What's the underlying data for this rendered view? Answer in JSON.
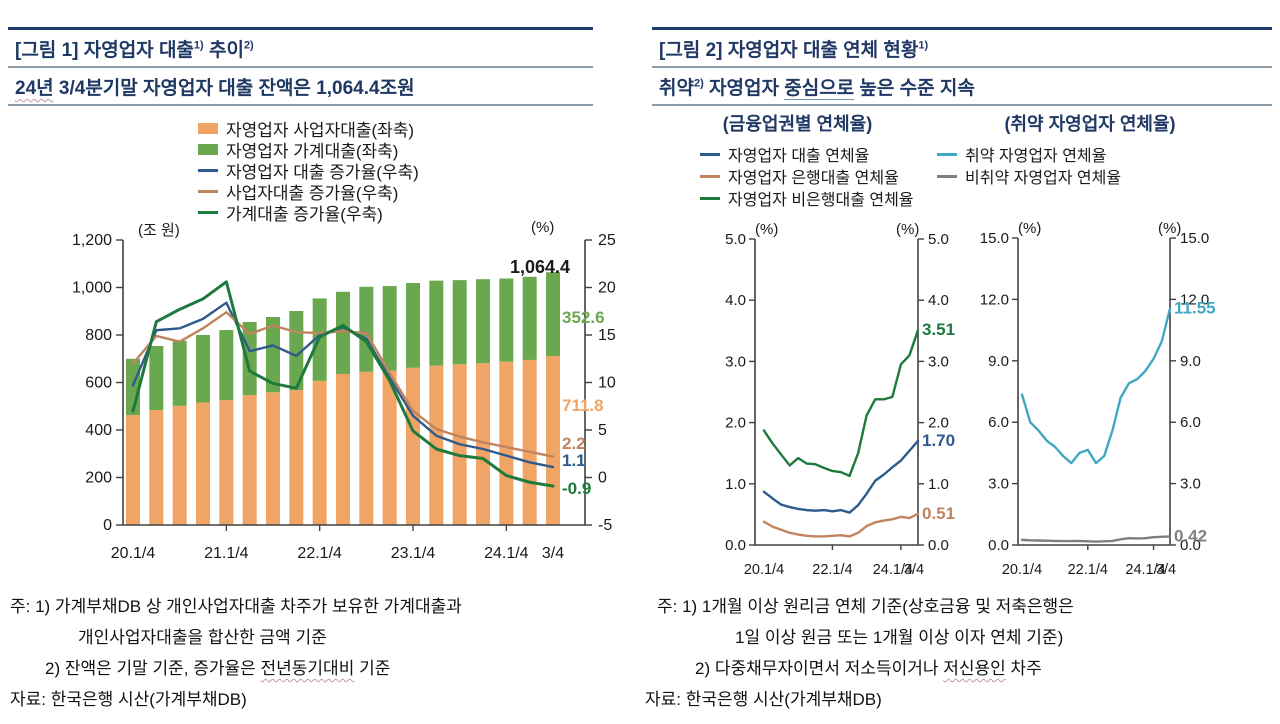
{
  "colors": {
    "accent_navy": "#1F3864",
    "header_bar_navy": "#1F3C6E",
    "rule_gray": "#8C9BAA",
    "bar_orange": "#F0A466",
    "bar_green": "#6AA84F",
    "line_blue": "#2E5B8C",
    "line_tan": "#C0845E",
    "line_dark_green": "#1E7A3C",
    "line_cyan": "#3FA7C2",
    "line_gray": "#7F7F7F"
  },
  "left_panel": {
    "title_segments": [
      {
        "t": "[그림 1] 자영업자 대출"
      },
      {
        "t": "1)",
        "sup": true
      },
      {
        "t": " 추이"
      },
      {
        "t": "2)",
        "sup": true
      }
    ],
    "subtitle_segments": [
      {
        "t": "24년",
        "u": true
      },
      {
        "t": " 3/4분기말 자영업자 대출 잔액은 1,064.4조원"
      }
    ],
    "footnote_lines": [
      [
        {
          "t": "주: 1) 가계부채DB 상 개인사업자대출 차주가 보유한 가계대출과"
        }
      ],
      [
        {
          "t": "개인사업자대출을 합산한 금액 기준"
        }
      ],
      [
        {
          "t": "2) 잔액은 기말 기준, 증가율은 "
        },
        {
          "t": "전년동기대비",
          "u": true
        },
        {
          "t": " 기준"
        }
      ],
      [
        {
          "t": "자료: 한국은행 시산(가계부채DB)"
        }
      ]
    ]
  },
  "right_panel": {
    "title_segments": [
      {
        "t": "[그림 2] 자영업자 대출 연체 현황"
      },
      {
        "t": "1)",
        "sup": true
      }
    ],
    "subtitle_segments": [
      {
        "t": "취약"
      },
      {
        "t": "2)",
        "sup": true
      },
      {
        "t": " 자영업자 "
      },
      {
        "t": "중심으로",
        "u2": true
      },
      {
        "t": " 높은 수준 지속"
      }
    ],
    "chartA_header": "(금융업권별 연체율)",
    "chartB_header": "(취약 자영업자 연체율)",
    "footnote_lines": [
      [
        {
          "t": "주: 1) 1개월 이상 원리금 연체 기준(상호금융 및 저축은행은"
        }
      ],
      [
        {
          "t": "1일 이상 원금 또는 1개월 이상 이자 연체 기준)"
        }
      ],
      [
        {
          "t": "2) 다중채무자이면서 저소득이거나 "
        },
        {
          "t": "저신용인",
          "u": true
        },
        {
          "t": " 차주"
        }
      ],
      [
        {
          "t": "자료: 한국은행 시산(가계부채DB)"
        }
      ]
    ]
  },
  "chart_data": [
    {
      "type": "stacked-bar+line",
      "title": "자영업자 대출 추이",
      "n_points": 19,
      "x_tick_labels": [
        "20.1/4",
        "21.1/4",
        "22.1/4",
        "23.1/4",
        "24.1/4",
        "3/4"
      ],
      "x_tick_indices": [
        0,
        4,
        8,
        12,
        16,
        18
      ],
      "left_axis": {
        "unit": "(조 원)",
        "min": 0,
        "max": 1200,
        "step": 200
      },
      "right_axis": {
        "unit": "(%)",
        "min": -5,
        "max": 25,
        "step": 5
      },
      "total_label": "1,064.4",
      "bar_series": [
        {
          "name": "자영업자 사업자대출(좌축)",
          "color": "#F0A466",
          "axis": "left",
          "end_label": "711.8",
          "values": [
            463,
            484,
            502,
            516,
            526,
            547,
            559,
            568,
            607,
            636,
            645,
            650,
            662,
            671,
            677,
            681,
            688,
            695,
            711.8
          ]
        },
        {
          "name": "자영업자 가계대출(좌축)",
          "color": "#6AA84F",
          "axis": "left",
          "end_label": "352.6",
          "values": [
            237,
            270,
            274,
            284,
            295,
            308,
            317,
            333,
            347,
            346,
            358,
            356,
            357,
            358,
            354,
            354,
            350,
            350,
            352.6
          ]
        }
      ],
      "line_series": [
        {
          "name": "자영업자 대출 증가율(우축)",
          "color": "#2E5B8C",
          "axis": "right",
          "end_label": "1.1",
          "values": [
            9.7,
            15.5,
            15.7,
            16.7,
            18.4,
            13.3,
            13.9,
            12.8,
            15.0,
            15.8,
            14.6,
            10.5,
            6.5,
            4.4,
            3.5,
            3.0,
            2.3,
            1.6,
            1.1
          ]
        },
        {
          "name": "사업자대출 증가율(우축)",
          "color": "#C0845E",
          "axis": "right",
          "end_label": "2.2",
          "values": [
            12.0,
            14.9,
            14.3,
            15.7,
            17.4,
            15.1,
            16.0,
            15.3,
            15.2,
            15.4,
            15.2,
            11.0,
            7.0,
            5.1,
            4.3,
            3.7,
            3.2,
            2.7,
            2.2
          ]
        },
        {
          "name": "가계대출 증가율(우축)",
          "color": "#1E7A3C",
          "axis": "right",
          "end_label": "-0.9",
          "values": [
            7.0,
            16.4,
            17.7,
            18.8,
            20.6,
            11.2,
            9.9,
            9.4,
            14.8,
            16.0,
            14.3,
            10.2,
            4.9,
            3.0,
            2.3,
            2.0,
            0.2,
            -0.5,
            -0.9
          ]
        }
      ]
    },
    {
      "type": "line",
      "title": "금융업권별 연체율",
      "n_points": 19,
      "x_tick_labels": [
        "20.1/4",
        "22.1/4",
        "24.1/4",
        "3/4"
      ],
      "x_tick_indices": [
        0,
        8,
        16,
        18
      ],
      "y_axis": {
        "unit": "(%)",
        "min": 0,
        "max": 5,
        "step": 1,
        "decimals": 1
      },
      "line_series": [
        {
          "name": "자영업자 대출 연체율",
          "color": "#2E5B8C",
          "end_label": "1.70",
          "values": [
            0.87,
            0.76,
            0.66,
            0.62,
            0.59,
            0.57,
            0.56,
            0.57,
            0.55,
            0.57,
            0.53,
            0.65,
            0.84,
            1.05,
            1.15,
            1.27,
            1.38,
            1.54,
            1.7
          ]
        },
        {
          "name": "자영업자 은행대출 연체율",
          "color": "#C0845E",
          "end_label": "0.51",
          "values": [
            0.38,
            0.3,
            0.25,
            0.2,
            0.17,
            0.15,
            0.14,
            0.14,
            0.15,
            0.16,
            0.14,
            0.2,
            0.31,
            0.37,
            0.4,
            0.42,
            0.46,
            0.44,
            0.51
          ]
        },
        {
          "name": "자영업자 비은행대출 연체율",
          "color": "#1E7A3C",
          "end_label": "3.51",
          "values": [
            1.87,
            1.66,
            1.48,
            1.3,
            1.42,
            1.33,
            1.32,
            1.26,
            1.21,
            1.19,
            1.13,
            1.5,
            2.12,
            2.38,
            2.38,
            2.42,
            2.95,
            3.1,
            3.51
          ]
        }
      ]
    },
    {
      "type": "line",
      "title": "취약 자영업자 연체율",
      "n_points": 19,
      "x_tick_labels": [
        "20.1/4",
        "22.1/4",
        "24.1/4",
        "3/4"
      ],
      "x_tick_indices": [
        0,
        8,
        16,
        18
      ],
      "y_axis": {
        "unit": "(%)",
        "min": 0,
        "max": 15,
        "step": 3,
        "decimals": 1
      },
      "line_series": [
        {
          "name": "취약 자영업자 연체율",
          "color": "#3FA7C2",
          "end_label": "11.55",
          "values": [
            7.35,
            6.0,
            5.6,
            5.1,
            4.8,
            4.35,
            4.0,
            4.5,
            4.65,
            4.0,
            4.35,
            5.6,
            7.2,
            7.9,
            8.1,
            8.5,
            9.1,
            9.95,
            11.55
          ]
        },
        {
          "name": "비취약 자영업자 연체율",
          "color": "#7F7F7F",
          "end_label": "0.42",
          "values": [
            0.25,
            0.23,
            0.22,
            0.21,
            0.2,
            0.19,
            0.19,
            0.2,
            0.18,
            0.17,
            0.18,
            0.2,
            0.28,
            0.33,
            0.32,
            0.33,
            0.38,
            0.4,
            0.42
          ]
        }
      ]
    }
  ]
}
